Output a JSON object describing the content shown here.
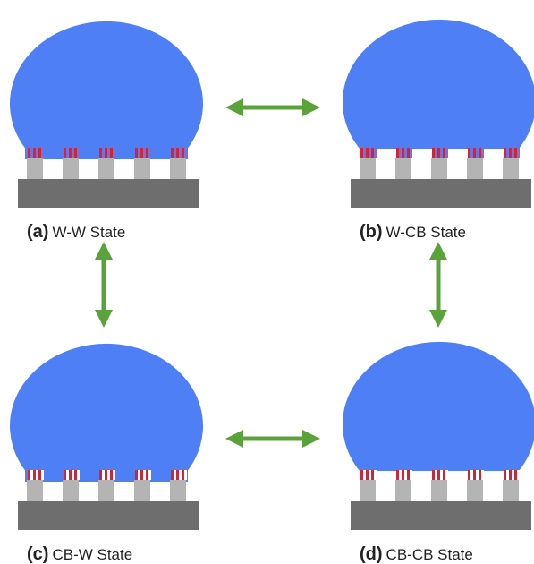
{
  "panels": [
    {
      "letter": "(a)",
      "label": "W-W State"
    },
    {
      "letter": "(b)",
      "label": "W-CB State"
    },
    {
      "letter": "(c)",
      "label": "CB-W State"
    },
    {
      "letter": "(d)",
      "label": "CB-CB State"
    }
  ]
}
